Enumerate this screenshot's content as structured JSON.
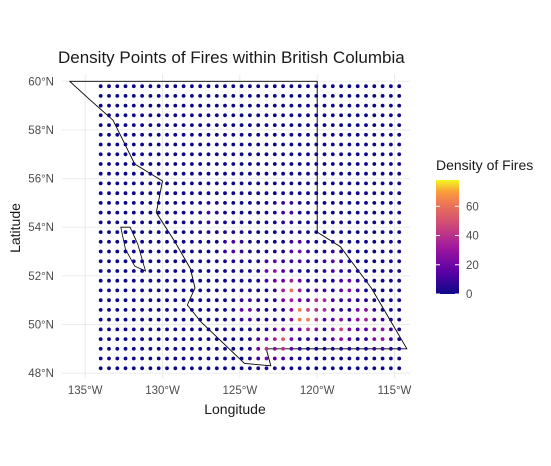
{
  "chart_data": {
    "type": "scatter",
    "title": "Density Points of Fires within British Columbia",
    "xlabel": "Longitude",
    "ylabel": "Latitude",
    "xlim": [
      -136.5,
      -114.0
    ],
    "ylim": [
      47.8,
      60.3
    ],
    "x_ticks": [
      {
        "value": -135,
        "label": "135°W"
      },
      {
        "value": -130,
        "label": "130°W"
      },
      {
        "value": -125,
        "label": "125°W"
      },
      {
        "value": -120,
        "label": "120°W"
      },
      {
        "value": -115,
        "label": "115°W"
      }
    ],
    "y_ticks": [
      {
        "value": 48,
        "label": "48°N"
      },
      {
        "value": 50,
        "label": "50°N"
      },
      {
        "value": 52,
        "label": "52°N"
      },
      {
        "value": 54,
        "label": "54°N"
      },
      {
        "value": 56,
        "label": "56°N"
      },
      {
        "value": 58,
        "label": "58°N"
      },
      {
        "value": 60,
        "label": "60°N"
      }
    ],
    "grid": true,
    "point_grid": {
      "x_start": -134.0,
      "x_end": -114.7,
      "x_count": 37,
      "y_start": 48.2,
      "y_end": 59.8,
      "y_count": 30,
      "background_density": 0
    },
    "hotspots": [
      {
        "lon": -121.0,
        "lat": 50.4,
        "density": 75
      },
      {
        "lon": -120.5,
        "lat": 50.2,
        "density": 65
      },
      {
        "lon": -121.7,
        "lat": 51.4,
        "density": 60
      },
      {
        "lon": -119.8,
        "lat": 50.8,
        "density": 50
      },
      {
        "lon": -118.5,
        "lat": 49.8,
        "density": 45
      },
      {
        "lon": -122.3,
        "lat": 49.3,
        "density": 55
      },
      {
        "lon": -123.2,
        "lat": 49.0,
        "density": 40
      },
      {
        "lon": -117.0,
        "lat": 50.3,
        "density": 38
      },
      {
        "lon": -116.0,
        "lat": 49.6,
        "density": 35
      },
      {
        "lon": -122.8,
        "lat": 52.2,
        "density": 30
      },
      {
        "lon": -121.2,
        "lat": 53.0,
        "density": 22
      },
      {
        "lon": -124.5,
        "lat": 50.6,
        "density": 20
      },
      {
        "lon": -119.0,
        "lat": 52.5,
        "density": 18
      },
      {
        "lon": -125.5,
        "lat": 53.2,
        "density": 15
      },
      {
        "lon": -122.0,
        "lat": 54.7,
        "density": 14
      },
      {
        "lon": -127.0,
        "lat": 54.5,
        "density": 10
      },
      {
        "lon": -118.0,
        "lat": 51.5,
        "density": 25
      }
    ],
    "legend": {
      "title": "Density of Fires",
      "position": "right",
      "min": 0,
      "max": 78,
      "ticks": [
        {
          "value": 0,
          "label": "0"
        },
        {
          "value": 20,
          "label": "20"
        },
        {
          "value": 40,
          "label": "40"
        },
        {
          "value": 60,
          "label": "60"
        }
      ],
      "colormap": "plasma"
    },
    "province_outline": [
      [
        -136.0,
        60.0
      ],
      [
        -120.0,
        60.0
      ],
      [
        -120.0,
        53.8
      ],
      [
        -118.5,
        53.2
      ],
      [
        -116.5,
        51.5
      ],
      [
        -114.2,
        49.0
      ],
      [
        -123.3,
        49.0
      ],
      [
        -123.0,
        48.3
      ],
      [
        -124.7,
        48.4
      ],
      [
        -127.5,
        50.1
      ],
      [
        -128.4,
        50.8
      ],
      [
        -127.9,
        51.5
      ],
      [
        -128.2,
        52.3
      ],
      [
        -129.2,
        53.4
      ],
      [
        -130.4,
        54.6
      ],
      [
        -130.0,
        55.9
      ],
      [
        -131.8,
        56.6
      ],
      [
        -133.2,
        58.4
      ],
      [
        -134.8,
        59.3
      ],
      [
        -136.0,
        60.0
      ]
    ],
    "islands": [
      [
        [
          -132.7,
          54.0
        ],
        [
          -132.1,
          54.0
        ],
        [
          -131.6,
          53.3
        ],
        [
          -131.1,
          52.2
        ],
        [
          -131.8,
          52.4
        ],
        [
          -132.4,
          53.1
        ]
      ]
    ],
    "colors": {
      "background": "#ffffff",
      "grid": "#ebebeb",
      "outline": "#000000"
    }
  }
}
